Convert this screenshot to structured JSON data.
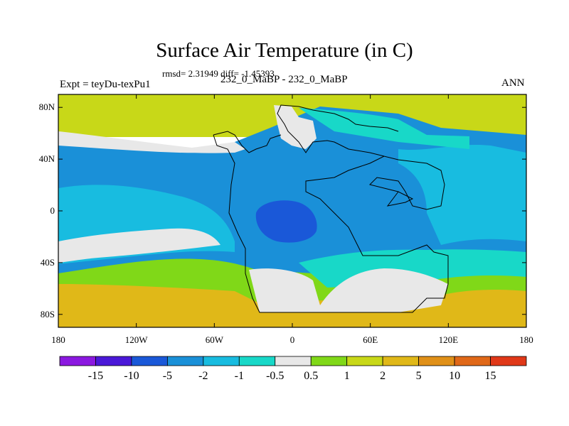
{
  "chart_data": {
    "type": "heatmap",
    "title": "Surface Air Temperature (in C)",
    "stats": "rmsd= 2.31949 diff= -1.45393",
    "left_label": "Expt = teyDu-texPu1",
    "center_label": "232_0_MaBP - 232_0_MaBP",
    "right_label": "ANN",
    "x_range": [
      -180,
      180
    ],
    "y_range": [
      -90,
      90
    ],
    "x_ticks": [
      {
        "value": -180,
        "label": "180"
      },
      {
        "value": -120,
        "label": "120W"
      },
      {
        "value": -60,
        "label": "60W"
      },
      {
        "value": 0,
        "label": "0"
      },
      {
        "value": 60,
        "label": "60E"
      },
      {
        "value": 120,
        "label": "120E"
      },
      {
        "value": 180,
        "label": "180"
      }
    ],
    "y_ticks": [
      {
        "value": 80,
        "label": "80N"
      },
      {
        "value": 40,
        "label": "40N"
      },
      {
        "value": 0,
        "label": "0"
      },
      {
        "value": -40,
        "label": "40S"
      },
      {
        "value": -80,
        "label": "80S"
      }
    ],
    "colorbar": {
      "colors": [
        "#8b18e0",
        "#4a18d8",
        "#1a58d8",
        "#1a90d8",
        "#18bce0",
        "#18d8c8",
        "#e8e8e8",
        "#80d818",
        "#c8d818",
        "#e0b818",
        "#e09018",
        "#e06818",
        "#e03818"
      ],
      "labels": [
        "-15",
        "-10",
        "-5",
        "-2",
        "-1",
        "-0.5",
        "0.5",
        "1",
        "2",
        "5",
        "10",
        "15"
      ]
    }
  }
}
